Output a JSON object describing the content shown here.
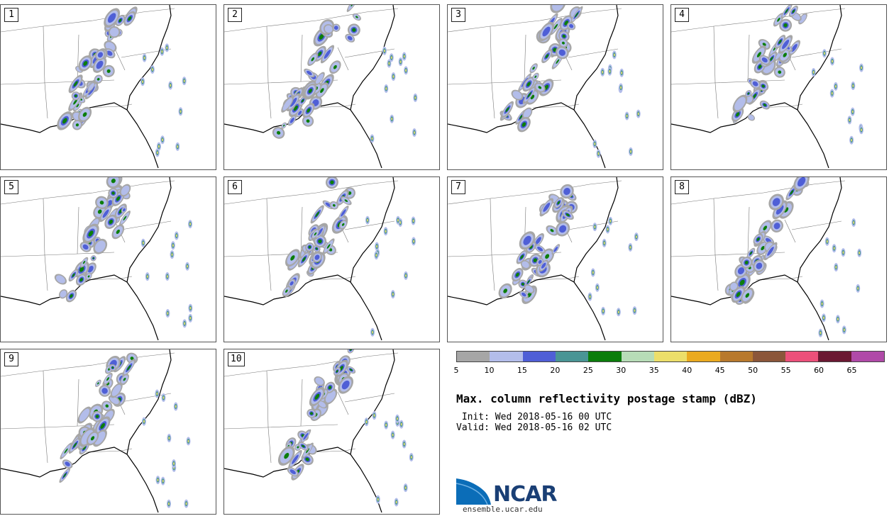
{
  "panels": [
    {
      "number": "1"
    },
    {
      "number": "2"
    },
    {
      "number": "3"
    },
    {
      "number": "4"
    },
    {
      "number": "5"
    },
    {
      "number": "6"
    },
    {
      "number": "7"
    },
    {
      "number": "8"
    },
    {
      "number": "9"
    },
    {
      "number": "10"
    }
  ],
  "colorbar": {
    "colors": [
      "#a6a6a6",
      "#b3bdea",
      "#4f5fd6",
      "#4a9595",
      "#0b7d0b",
      "#b7dcb7",
      "#ecde6a",
      "#eaaa20",
      "#b8792d",
      "#8b563a",
      "#ec507a",
      "#6b1832",
      "#b04aa8"
    ],
    "labels": [
      "5",
      "10",
      "15",
      "20",
      "25",
      "30",
      "35",
      "40",
      "45",
      "50",
      "55",
      "60",
      "65"
    ]
  },
  "title": "Max. column reflectivity postage stamp (dBZ)",
  "init": " Init: Wed 2018-05-16 00 UTC",
  "valid": "Valid: Wed 2018-05-16 02 UTC",
  "logo": {
    "text": "NCAR",
    "url": "ensemble.ucar.edu"
  }
}
